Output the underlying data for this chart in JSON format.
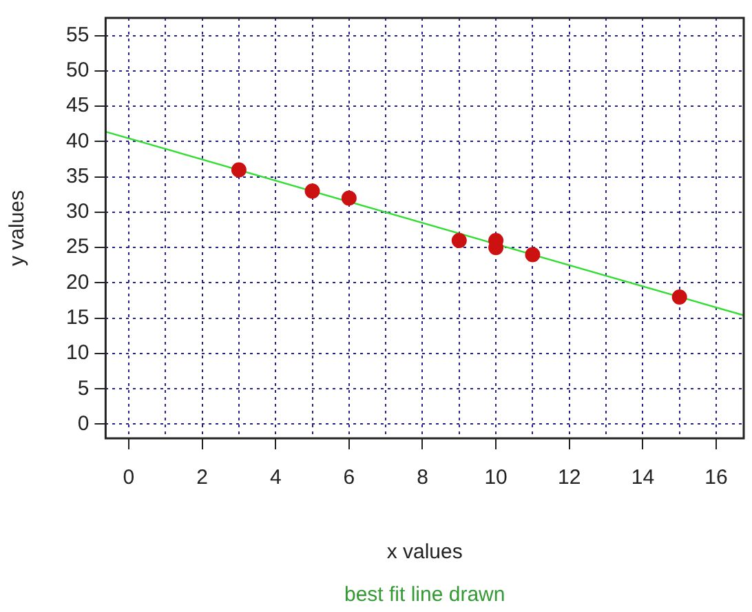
{
  "chart_data": {
    "type": "scatter",
    "xlabel": "x values",
    "ylabel": "y values",
    "annotations": [
      "best fit line drawn"
    ],
    "x": [
      3,
      5,
      6,
      9,
      10,
      10,
      11,
      15
    ],
    "series": [
      {
        "marker": "circle",
        "color": "#cc1111",
        "values": [
          36,
          33,
          32,
          26,
          26,
          25,
          24,
          18
        ]
      },
      {
        "type": "line",
        "color": "#33dd33",
        "x": [
          -0.63,
          16.75
        ],
        "values": [
          41.4,
          15.4
        ]
      }
    ],
    "xlim": [
      -0.63,
      16.75
    ],
    "ylim": [
      -2,
      57.5
    ],
    "xticks": [
      0,
      {
        "value": 1,
        "label": null
      },
      2,
      {
        "value": 3,
        "label": null
      },
      4,
      {
        "value": 5,
        "label": null
      },
      6,
      {
        "value": 7,
        "label": null
      },
      8,
      {
        "value": 9,
        "label": null
      },
      10,
      {
        "value": 11,
        "label": null
      },
      12,
      {
        "value": 13,
        "label": null
      },
      14,
      {
        "value": 15,
        "label": null
      },
      16
    ],
    "yticks": [
      0,
      5,
      10,
      15,
      20,
      25,
      30,
      35,
      40,
      45,
      50,
      55
    ],
    "grid": true
  }
}
